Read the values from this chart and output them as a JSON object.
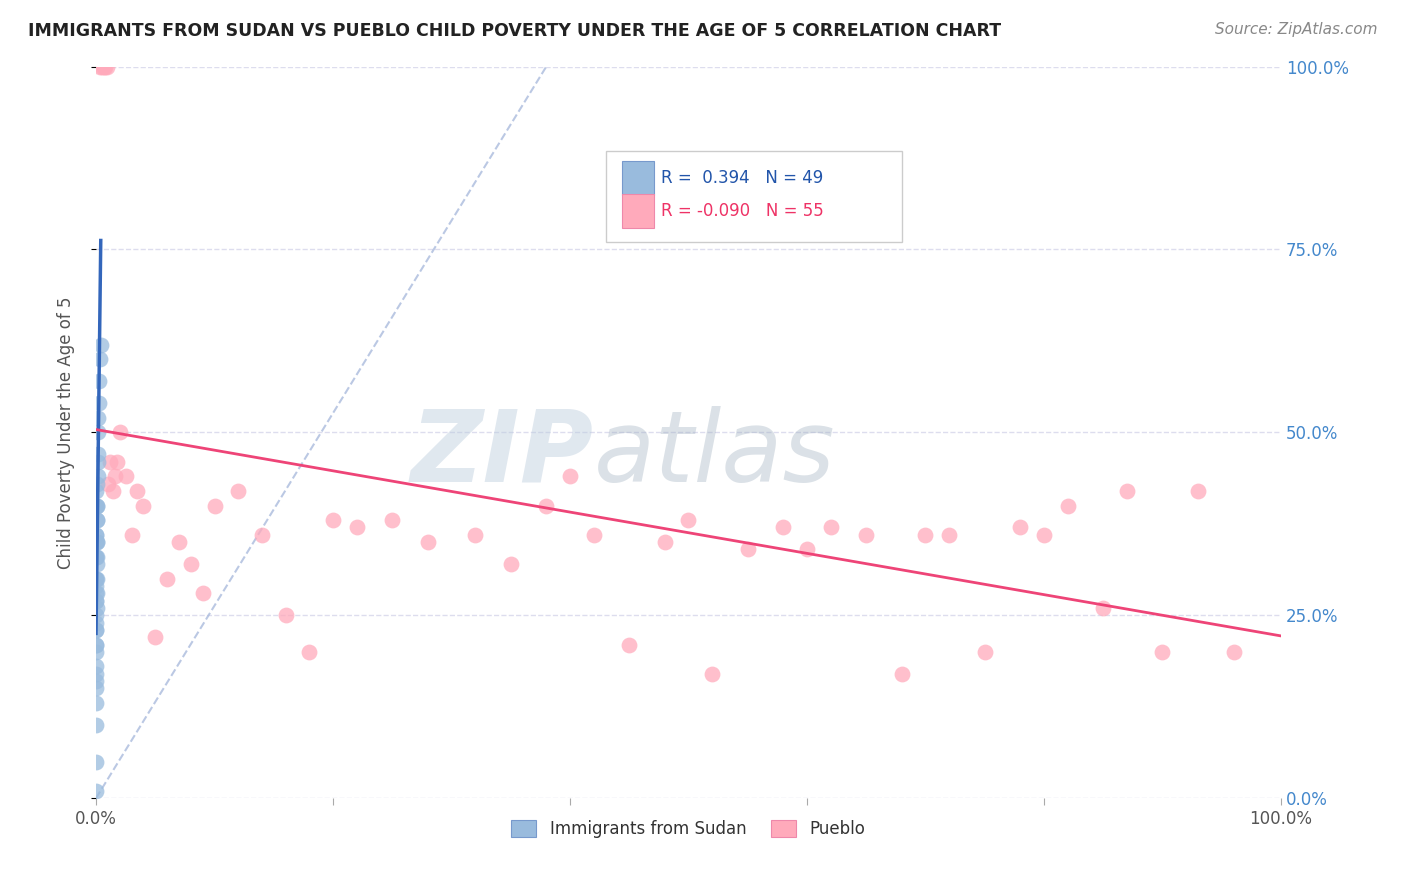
{
  "title": "IMMIGRANTS FROM SUDAN VS PUEBLO CHILD POVERTY UNDER THE AGE OF 5 CORRELATION CHART",
  "source": "Source: ZipAtlas.com",
  "ylabel": "Child Poverty Under the Age of 5",
  "ytick_labels": [
    "0.0%",
    "25.0%",
    "50.0%",
    "75.0%",
    "100.0%"
  ],
  "ytick_values": [
    0.0,
    0.25,
    0.5,
    0.75,
    1.0
  ],
  "legend_label1": "Immigrants from Sudan",
  "legend_label2": "Pueblo",
  "color_blue": "#99BBDD",
  "color_pink": "#FFAABB",
  "color_blue_line": "#3366BB",
  "color_pink_line": "#EE4477",
  "color_dashed": "#AABBDD",
  "background_color": "#FFFFFF",
  "grid_color": "#DDDDEE",
  "sudan_x": [
    0.0,
    0.0,
    0.0001,
    0.0001,
    0.0001,
    0.0001,
    0.0001,
    0.0001,
    0.0001,
    0.0002,
    0.0002,
    0.0002,
    0.0002,
    0.0002,
    0.0002,
    0.0002,
    0.0002,
    0.0002,
    0.0003,
    0.0003,
    0.0003,
    0.0003,
    0.0003,
    0.0003,
    0.0004,
    0.0004,
    0.0004,
    0.0004,
    0.0005,
    0.0005,
    0.0005,
    0.0006,
    0.0006,
    0.0007,
    0.0007,
    0.0008,
    0.0009,
    0.001,
    0.0011,
    0.0012,
    0.0013,
    0.0014,
    0.0015,
    0.0017,
    0.002,
    0.0022,
    0.0025,
    0.003,
    0.004
  ],
  "sudan_y": [
    0.01,
    0.05,
    0.1,
    0.13,
    0.16,
    0.2,
    0.23,
    0.27,
    0.3,
    0.15,
    0.18,
    0.21,
    0.24,
    0.27,
    0.3,
    0.33,
    0.36,
    0.4,
    0.17,
    0.21,
    0.25,
    0.29,
    0.33,
    0.36,
    0.23,
    0.28,
    0.35,
    0.42,
    0.26,
    0.32,
    0.4,
    0.28,
    0.35,
    0.3,
    0.38,
    0.33,
    0.35,
    0.38,
    0.4,
    0.43,
    0.44,
    0.46,
    0.47,
    0.5,
    0.52,
    0.54,
    0.57,
    0.6,
    0.62
  ],
  "pueblo_x": [
    0.003,
    0.005,
    0.007,
    0.008,
    0.009,
    0.01,
    0.012,
    0.014,
    0.016,
    0.018,
    0.02,
    0.025,
    0.03,
    0.035,
    0.04,
    0.05,
    0.06,
    0.07,
    0.08,
    0.09,
    0.1,
    0.12,
    0.14,
    0.16,
    0.18,
    0.2,
    0.22,
    0.25,
    0.28,
    0.32,
    0.35,
    0.38,
    0.4,
    0.42,
    0.45,
    0.48,
    0.5,
    0.52,
    0.55,
    0.58,
    0.6,
    0.62,
    0.65,
    0.68,
    0.7,
    0.72,
    0.75,
    0.78,
    0.8,
    0.82,
    0.85,
    0.87,
    0.9,
    0.93,
    0.96
  ],
  "pueblo_y": [
    1.0,
    1.0,
    1.0,
    1.0,
    1.0,
    0.43,
    0.46,
    0.42,
    0.44,
    0.46,
    0.5,
    0.44,
    0.36,
    0.42,
    0.4,
    0.22,
    0.3,
    0.35,
    0.32,
    0.28,
    0.4,
    0.42,
    0.36,
    0.25,
    0.2,
    0.38,
    0.37,
    0.38,
    0.35,
    0.36,
    0.32,
    0.4,
    0.44,
    0.36,
    0.21,
    0.35,
    0.38,
    0.17,
    0.34,
    0.37,
    0.34,
    0.37,
    0.36,
    0.17,
    0.36,
    0.36,
    0.2,
    0.37,
    0.36,
    0.4,
    0.26,
    0.42,
    0.2,
    0.42,
    0.2
  ],
  "xlim": [
    0.0,
    1.0
  ],
  "ylim": [
    0.0,
    1.0
  ],
  "R_sudan": 0.394,
  "N_sudan": 49,
  "R_pueblo": -0.09,
  "N_pueblo": 55
}
